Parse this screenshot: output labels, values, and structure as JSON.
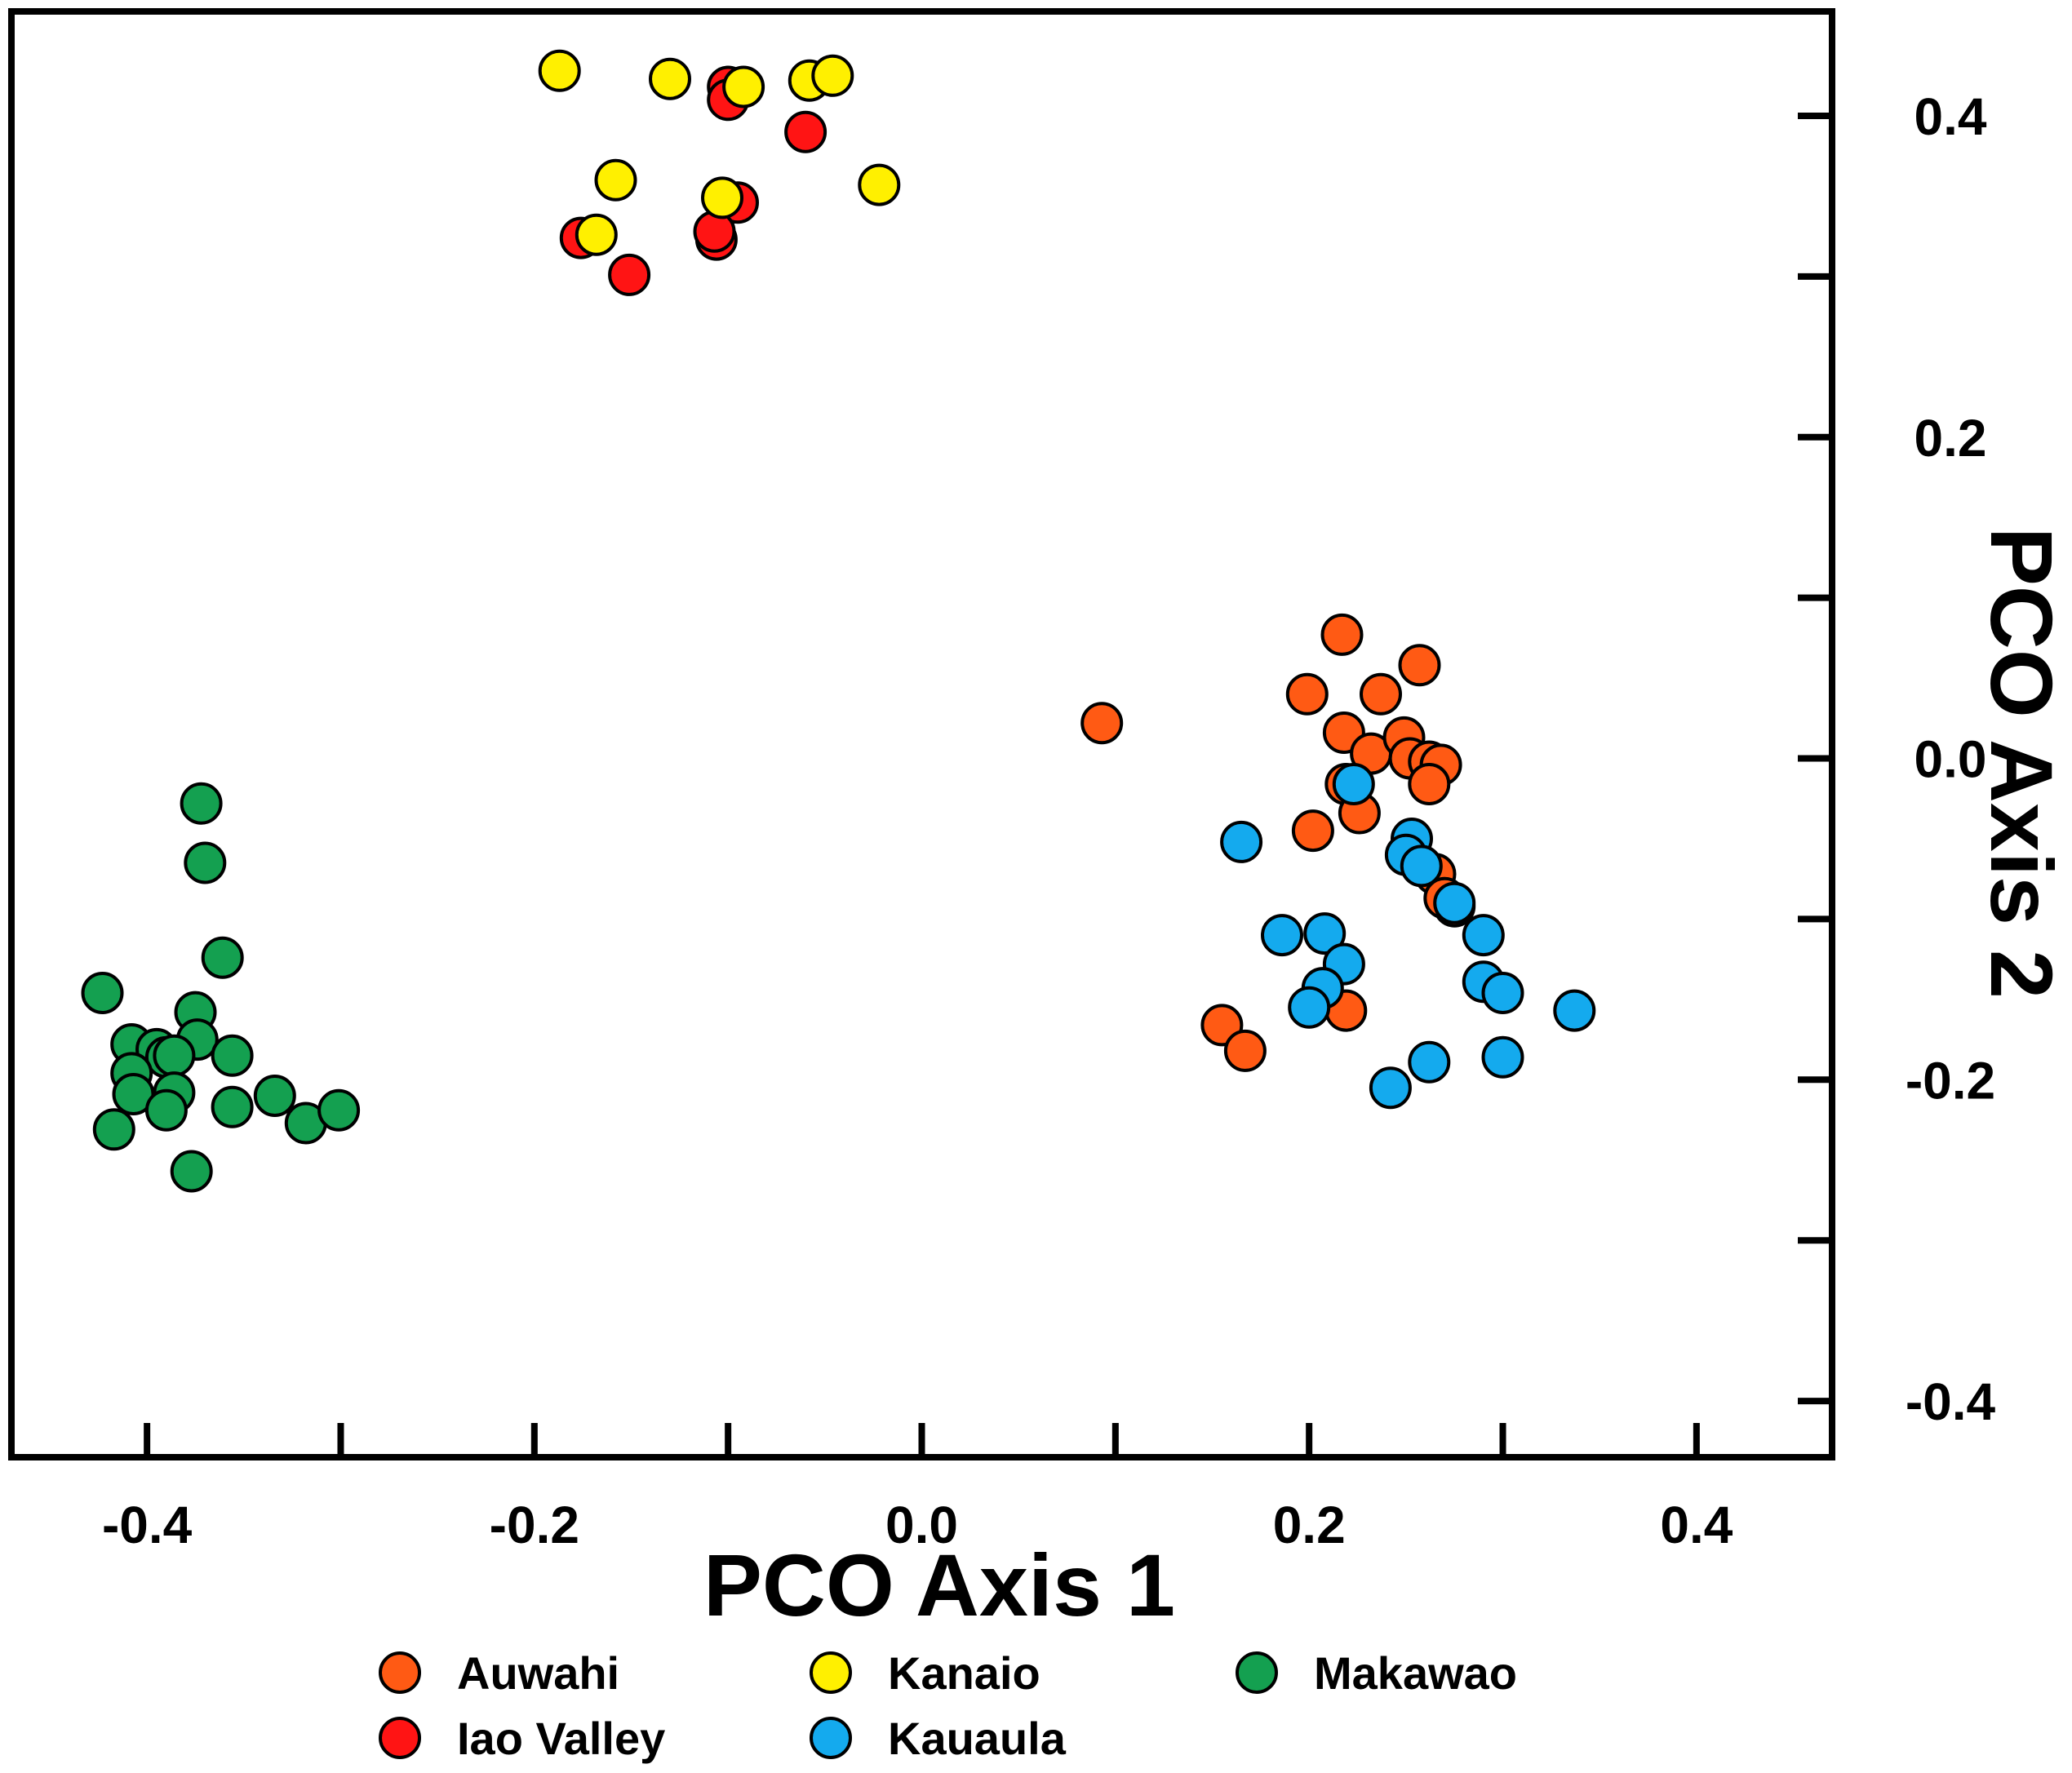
{
  "chart_data": {
    "type": "scatter",
    "title": "",
    "xlabel": "PCO Axis 1",
    "ylabel": "PCO Axis 2",
    "xlim": [
      -0.47,
      0.47
    ],
    "ylim": [
      -0.435,
      0.465
    ],
    "grid": false,
    "legend_position": "bottom",
    "x_ticks": [
      -0.4,
      -0.3,
      -0.2,
      -0.1,
      0.0,
      0.1,
      0.2,
      0.3,
      0.4
    ],
    "x_tick_labels": [
      "-0.4",
      "-0.2",
      "0.0",
      "0.2",
      "0.4"
    ],
    "x_tick_label_values": [
      -0.4,
      -0.2,
      0.0,
      0.2,
      0.4
    ],
    "y_ticks": [
      -0.4,
      -0.3,
      -0.2,
      -0.1,
      0.0,
      0.1,
      0.2,
      0.3,
      0.4
    ],
    "y_tick_labels": [
      "0.4",
      "0.2",
      "0.0",
      "-0.2",
      "-0.4"
    ],
    "y_tick_label_values": [
      0.4,
      0.2,
      0.0,
      -0.2,
      -0.4
    ],
    "series": [
      {
        "name": "Auwahi",
        "color": "#FF5A14",
        "points": [
          [
            0.093,
            0.022
          ],
          [
            0.217,
            0.077
          ],
          [
            0.199,
            0.04
          ],
          [
            0.237,
            0.04
          ],
          [
            0.257,
            0.058
          ],
          [
            0.218,
            0.016
          ],
          [
            0.232,
            0.003
          ],
          [
            0.249,
            0.013
          ],
          [
            0.252,
            0.0
          ],
          [
            0.262,
            -0.002
          ],
          [
            0.268,
            -0.004
          ],
          [
            0.262,
            -0.016
          ],
          [
            0.219,
            -0.016
          ],
          [
            0.226,
            -0.034
          ],
          [
            0.202,
            -0.045
          ],
          [
            0.265,
            -0.072
          ],
          [
            0.275,
            -0.092
          ],
          [
            0.27,
            -0.087
          ],
          [
            0.155,
            -0.166
          ],
          [
            0.167,
            -0.182
          ],
          [
            0.219,
            -0.157
          ]
        ]
      },
      {
        "name": "Iao Valley",
        "color": "#FF1414",
        "points": [
          [
            -0.1,
            0.418
          ],
          [
            -0.1,
            0.41
          ],
          [
            -0.06,
            0.39
          ],
          [
            -0.095,
            0.346
          ],
          [
            -0.106,
            0.323
          ],
          [
            -0.107,
            0.328
          ],
          [
            -0.176,
            0.324
          ],
          [
            -0.151,
            0.301
          ]
        ]
      },
      {
        "name": "Kanaio",
        "color": "#FFF000",
        "points": [
          [
            -0.187,
            0.428
          ],
          [
            -0.13,
            0.423
          ],
          [
            -0.092,
            0.418
          ],
          [
            -0.058,
            0.422
          ],
          [
            -0.046,
            0.425
          ],
          [
            -0.158,
            0.36
          ],
          [
            -0.022,
            0.357
          ],
          [
            -0.103,
            0.349
          ],
          [
            -0.168,
            0.326
          ]
        ]
      },
      {
        "name": "Kauaula",
        "color": "#14AAEE",
        "points": [
          [
            0.165,
            -0.052
          ],
          [
            0.223,
            -0.016
          ],
          [
            0.253,
            -0.05
          ],
          [
            0.25,
            -0.06
          ],
          [
            0.258,
            -0.067
          ],
          [
            0.275,
            -0.09
          ],
          [
            0.29,
            -0.11
          ],
          [
            0.186,
            -0.11
          ],
          [
            0.208,
            -0.109
          ],
          [
            0.218,
            -0.128
          ],
          [
            0.29,
            -0.139
          ],
          [
            0.3,
            -0.146
          ],
          [
            0.207,
            -0.143
          ],
          [
            0.2,
            -0.155
          ],
          [
            0.337,
            -0.157
          ],
          [
            0.262,
            -0.189
          ],
          [
            0.3,
            -0.186
          ],
          [
            0.242,
            -0.205
          ]
        ]
      },
      {
        "name": "Makawao",
        "color": "#14A050",
        "points": [
          [
            -0.372,
            -0.028
          ],
          [
            -0.37,
            -0.065
          ],
          [
            -0.361,
            -0.124
          ],
          [
            -0.423,
            -0.146
          ],
          [
            -0.375,
            -0.158
          ],
          [
            -0.408,
            -0.178
          ],
          [
            -0.395,
            -0.181
          ],
          [
            -0.374,
            -0.175
          ],
          [
            -0.39,
            -0.186
          ],
          [
            -0.386,
            -0.185
          ],
          [
            -0.408,
            -0.196
          ],
          [
            -0.356,
            -0.185
          ],
          [
            -0.407,
            -0.209
          ],
          [
            -0.386,
            -0.208
          ],
          [
            -0.39,
            -0.219
          ],
          [
            -0.356,
            -0.217
          ],
          [
            -0.334,
            -0.21
          ],
          [
            -0.318,
            -0.227
          ],
          [
            -0.301,
            -0.219
          ],
          [
            -0.417,
            -0.231
          ],
          [
            -0.377,
            -0.257
          ]
        ]
      }
    ]
  }
}
